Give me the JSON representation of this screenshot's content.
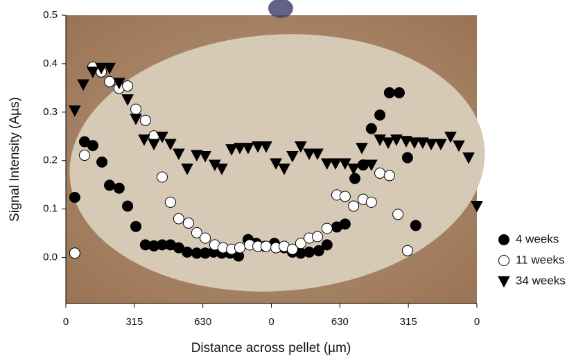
{
  "chart_data": {
    "type": "scatter",
    "xlabel": "Distance across pellet (µm)",
    "ylabel": "Signal Intensity (Aµs)",
    "xlim": [
      0,
      1890
    ],
    "xticks": [
      0,
      315,
      630,
      {
        "value": 945,
        "label": "0"
      },
      {
        "value": 1260,
        "label": "630"
      },
      {
        "value": 1575,
        "label": "315"
      },
      {
        "value": 1890,
        "label": "0"
      }
    ],
    "ylim": [
      -0.095,
      0.5
    ],
    "yticks": [
      {
        "value": 0,
        "label": "0.0"
      },
      0.1,
      0.2,
      0.3,
      0.4,
      0.5
    ],
    "legend": "right",
    "series": [
      {
        "name": "4 weeks",
        "color": "#000000",
        "marker": "circle",
        "x": [
          41,
          86,
          124,
          166,
          201,
          245,
          284,
          322,
          366,
          405,
          443,
          481,
          519,
          558,
          602,
          641,
          679,
          717,
          755,
          794,
          838,
          876,
          915,
          959,
          1004,
          1042,
          1080,
          1119,
          1163,
          1201,
          1246,
          1284,
          1329,
          1367,
          1405,
          1444,
          1488,
          1533,
          1571,
          1609
        ],
        "values": [
          0.124,
          0.239,
          0.231,
          0.197,
          0.149,
          0.143,
          0.106,
          0.064,
          0.026,
          0.024,
          0.026,
          0.026,
          0.02,
          0.011,
          0.009,
          0.009,
          0.011,
          0.009,
          0.009,
          0.003,
          0.037,
          0.029,
          0.023,
          0.029,
          0.02,
          0.011,
          0.009,
          0.011,
          0.014,
          0.026,
          0.063,
          0.069,
          0.163,
          0.191,
          0.266,
          0.294,
          0.34,
          0.34,
          0.206,
          0.066
        ]
      },
      {
        "name": "11 weeks",
        "color": "#ffffff",
        "marker": "circle",
        "x": [
          41,
          86,
          124,
          163,
          201,
          245,
          284,
          322,
          366,
          405,
          443,
          481,
          519,
          564,
          602,
          641,
          685,
          723,
          762,
          800,
          845,
          883,
          921,
          966,
          1004,
          1042,
          1080,
          1119,
          1157,
          1201,
          1246,
          1284,
          1323,
          1367,
          1405,
          1444,
          1488,
          1527,
          1571
        ],
        "values": [
          0.009,
          0.211,
          0.393,
          0.383,
          0.363,
          0.349,
          0.354,
          0.306,
          0.283,
          0.251,
          0.166,
          0.114,
          0.08,
          0.071,
          0.051,
          0.04,
          0.026,
          0.02,
          0.017,
          0.02,
          0.026,
          0.023,
          0.023,
          0.02,
          0.023,
          0.017,
          0.029,
          0.04,
          0.043,
          0.06,
          0.129,
          0.126,
          0.106,
          0.12,
          0.114,
          0.174,
          0.169,
          0.089,
          0.014
        ]
      },
      {
        "name": "34 weeks",
        "color": "#000000",
        "marker": "triangle",
        "x": [
          41,
          80,
          124,
          163,
          201,
          245,
          284,
          322,
          360,
          405,
          443,
          481,
          519,
          558,
          602,
          641,
          685,
          717,
          762,
          800,
          838,
          883,
          921,
          966,
          1004,
          1042,
          1080,
          1119,
          1157,
          1201,
          1240,
          1284,
          1323,
          1361,
          1405,
          1444,
          1482,
          1520,
          1565,
          1603,
          1641,
          1680,
          1724,
          1769,
          1807,
          1852,
          1890
        ],
        "values": [
          0.303,
          0.357,
          0.383,
          0.391,
          0.391,
          0.36,
          0.326,
          0.286,
          0.243,
          0.234,
          0.249,
          0.234,
          0.214,
          0.183,
          0.211,
          0.209,
          0.191,
          0.183,
          0.223,
          0.226,
          0.226,
          0.229,
          0.229,
          0.194,
          0.183,
          0.209,
          0.229,
          0.214,
          0.214,
          0.194,
          0.194,
          0.194,
          0.183,
          0.226,
          0.191,
          0.243,
          0.237,
          0.243,
          0.24,
          0.237,
          0.237,
          0.234,
          0.234,
          0.249,
          0.231,
          0.206,
          0.106
        ]
      }
    ]
  }
}
